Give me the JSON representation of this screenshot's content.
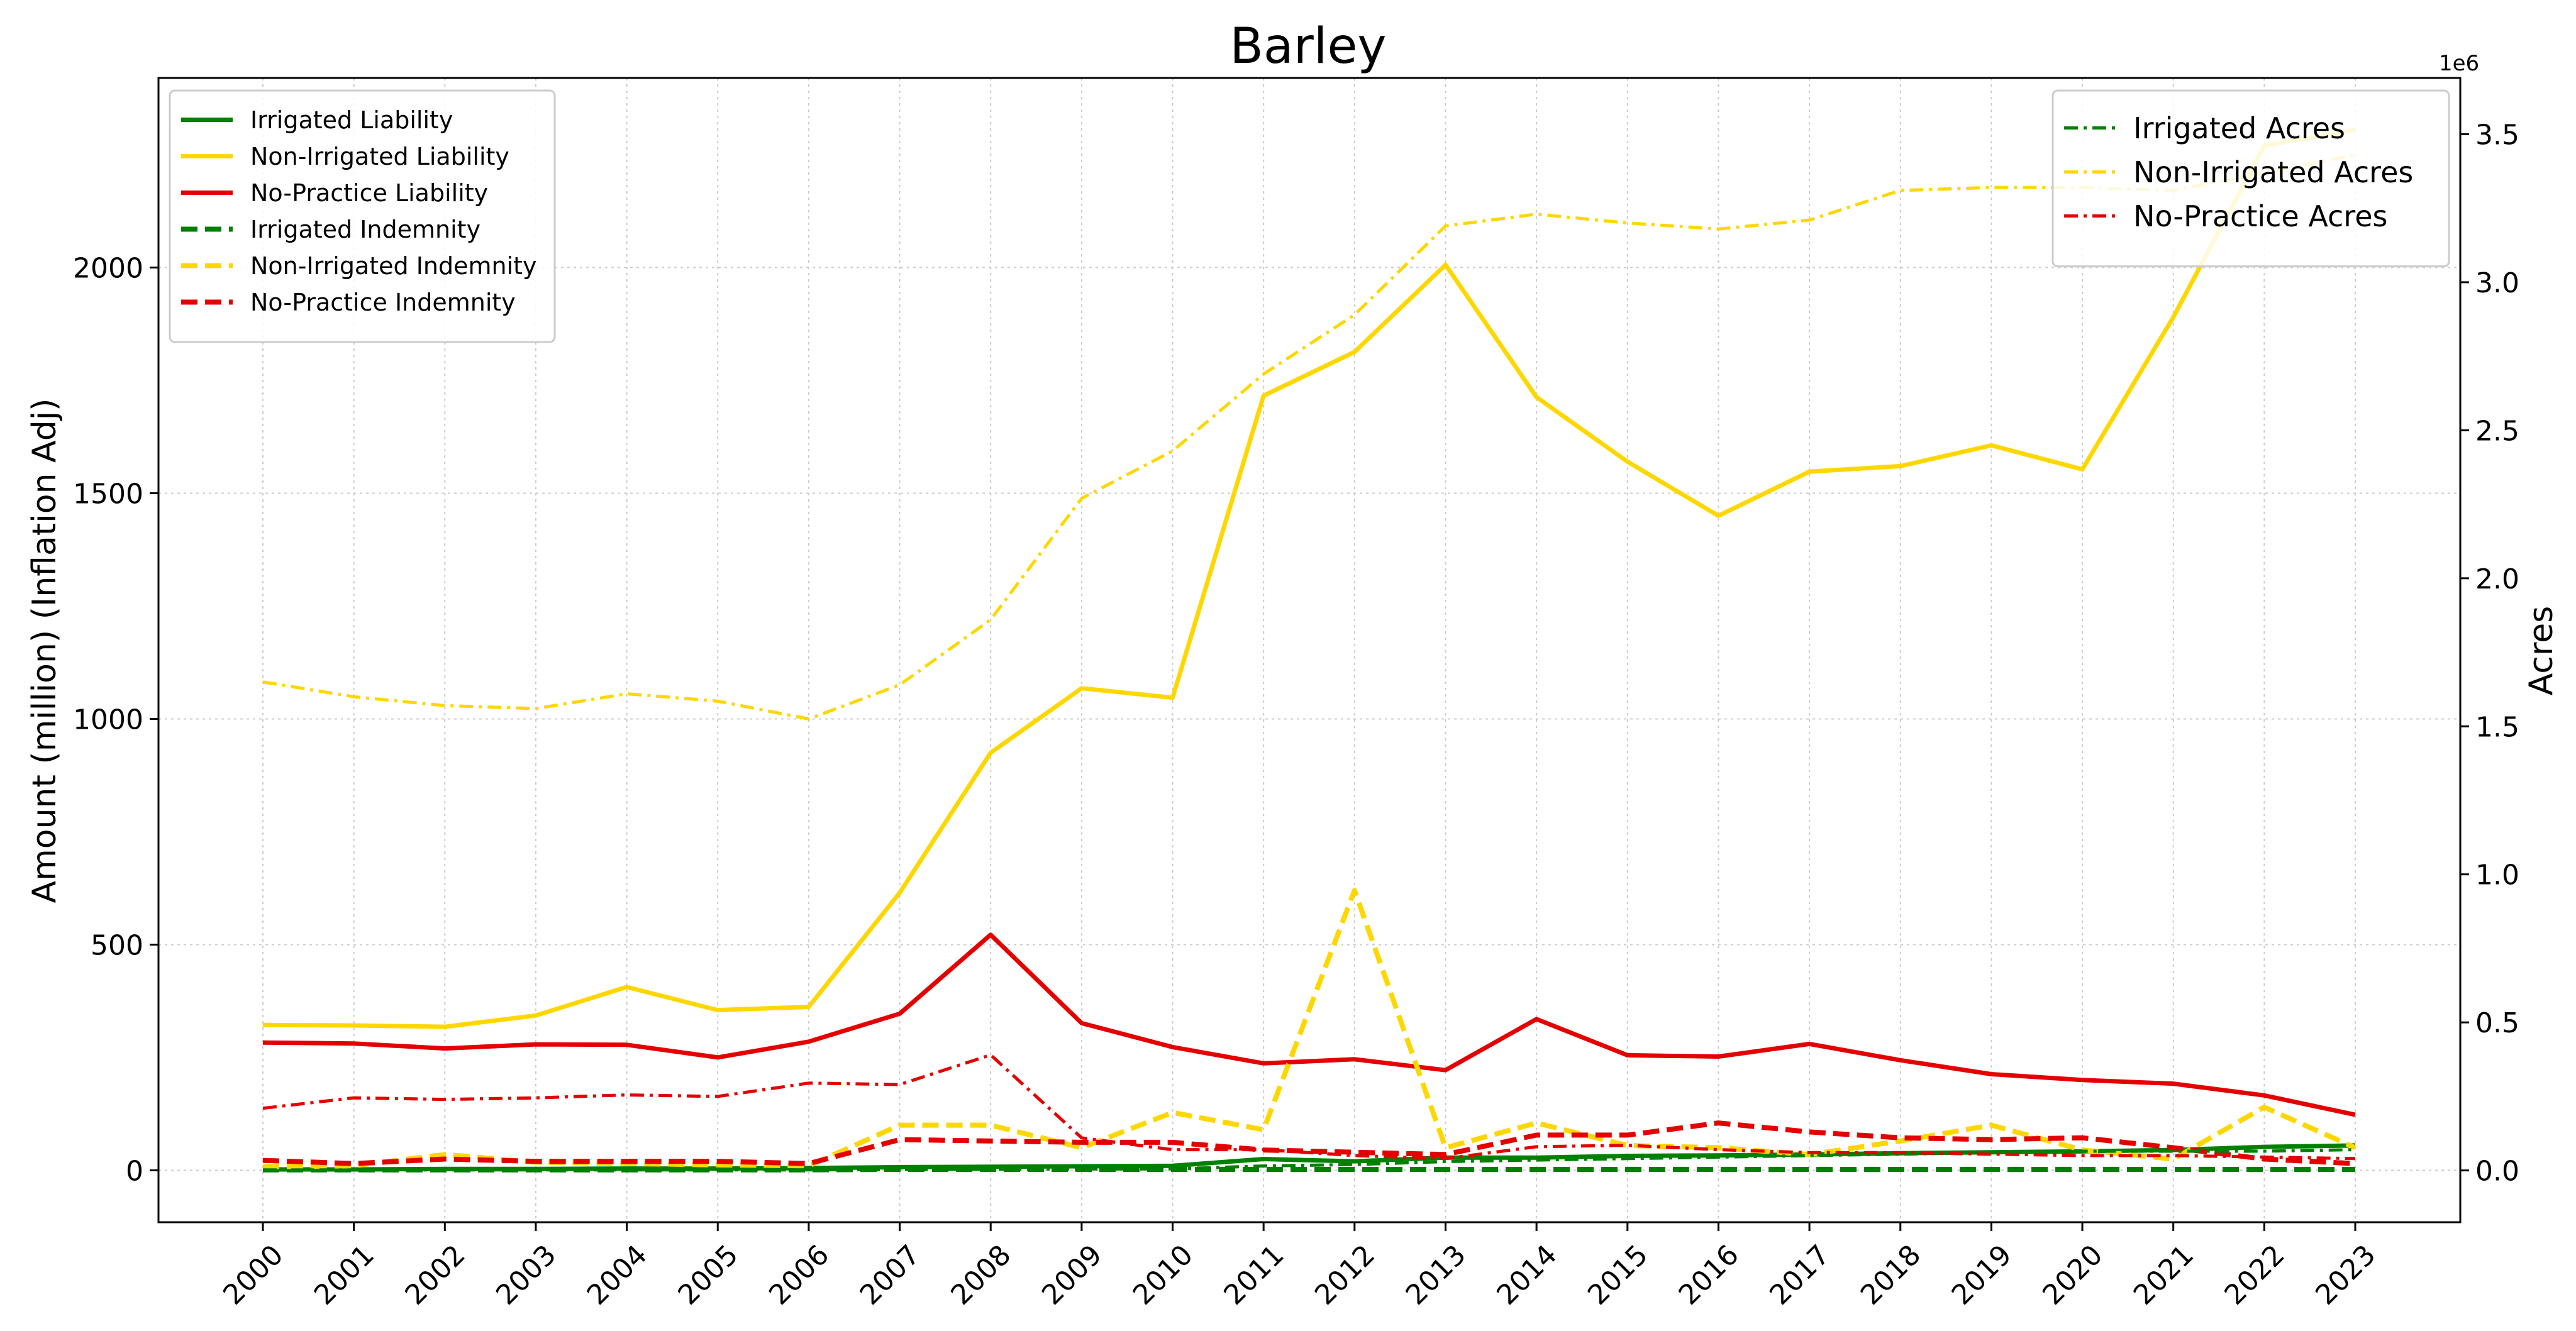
{
  "chart_data": {
    "type": "line",
    "title": "Barley",
    "x": [
      "2000",
      "2001",
      "2002",
      "2003",
      "2004",
      "2005",
      "2006",
      "2007",
      "2008",
      "2009",
      "2010",
      "2011",
      "2012",
      "2013",
      "2014",
      "2015",
      "2016",
      "2017",
      "2018",
      "2019",
      "2020",
      "2021",
      "2022",
      "2023"
    ],
    "left_axis": {
      "label": "Amount (million) (Inflation Adj)",
      "ylim": [
        -115,
        2420
      ],
      "ticks": [
        0,
        500,
        1000,
        1500,
        2000
      ]
    },
    "right_axis": {
      "label": "Acres",
      "offset_text": "1e6",
      "ylim": [
        -0.175,
        3.69
      ],
      "ticks": [
        0.0,
        0.5,
        1.0,
        1.5,
        2.0,
        2.5,
        3.0,
        3.5
      ],
      "tick_labels": [
        "0.0",
        "0.5",
        "1.0",
        "1.5",
        "2.0",
        "2.5",
        "3.0",
        "3.5"
      ]
    },
    "grid": true,
    "legend_left_placement": "top-left",
    "legend_right_placement": "top-right",
    "series": [
      {
        "name": "Irrigated Liability",
        "axis": "left",
        "style": "solid",
        "color": "#008000",
        "values": [
          2,
          2,
          3,
          3,
          4,
          4,
          5,
          7,
          8,
          9,
          10,
          25,
          20,
          28,
          28,
          32,
          33,
          35,
          38,
          40,
          42,
          45,
          52,
          55
        ]
      },
      {
        "name": "Non-Irrigated Liability",
        "axis": "left",
        "style": "solid",
        "color": "#FFD700",
        "values": [
          322,
          321,
          318,
          343,
          406,
          355,
          362,
          615,
          925,
          1068,
          1047,
          1716,
          1813,
          2006,
          1713,
          1570,
          1450,
          1548,
          1560,
          1606,
          1553,
          1890,
          2270,
          2305
        ]
      },
      {
        "name": "No-Practice Liability",
        "axis": "left",
        "style": "solid",
        "color": "#E50000",
        "values": [
          283,
          281,
          270,
          279,
          278,
          250,
          285,
          347,
          522,
          326,
          273,
          237,
          246,
          222,
          335,
          255,
          252,
          280,
          244,
          213,
          200,
          192,
          166,
          123
        ]
      },
      {
        "name": "Irrigated Indemnity",
        "axis": "left",
        "style": "dashed",
        "color": "#008000",
        "values": [
          1,
          1,
          1,
          1,
          1,
          1,
          1,
          2,
          2,
          2,
          2,
          2,
          2,
          2,
          2,
          2,
          2,
          2,
          2,
          2,
          2,
          2,
          2,
          2
        ]
      },
      {
        "name": "Non-Irrigated Indemnity",
        "axis": "left",
        "style": "dashed",
        "color": "#FFD700",
        "values": [
          8,
          10,
          35,
          18,
          15,
          12,
          10,
          100,
          100,
          50,
          128,
          90,
          620,
          50,
          105,
          55,
          50,
          35,
          65,
          100,
          45,
          25,
          140,
          50
        ]
      },
      {
        "name": "No-Practice Indemnity",
        "axis": "left",
        "style": "dashed",
        "color": "#E50000",
        "values": [
          22,
          15,
          25,
          20,
          20,
          20,
          15,
          68,
          65,
          62,
          62,
          45,
          40,
          35,
          78,
          78,
          105,
          85,
          72,
          68,
          72,
          50,
          25,
          15
        ]
      },
      {
        "name": "Irrigated Acres",
        "axis": "right",
        "style": "dashdot",
        "color": "#008000",
        "values": [
          0.002,
          0.002,
          0.002,
          0.002,
          0.002,
          0.002,
          0.002,
          0.003,
          0.004,
          0.005,
          0.005,
          0.015,
          0.02,
          0.03,
          0.035,
          0.04,
          0.045,
          0.05,
          0.055,
          0.06,
          0.065,
          0.065,
          0.065,
          0.07
        ]
      },
      {
        "name": "Non-Irrigated Acres",
        "axis": "right",
        "style": "dashdot",
        "color": "#FFD700",
        "values": [
          1.65,
          1.6,
          1.57,
          1.56,
          1.61,
          1.585,
          1.525,
          1.64,
          1.86,
          2.27,
          2.43,
          2.69,
          2.89,
          3.19,
          3.23,
          3.2,
          3.18,
          3.21,
          3.31,
          3.32,
          3.32,
          3.31,
          3.37,
          3.43
        ]
      },
      {
        "name": "No-Practice Acres",
        "axis": "right",
        "style": "dashdot",
        "color": "#E50000",
        "values": [
          0.21,
          0.245,
          0.24,
          0.245,
          0.255,
          0.25,
          0.295,
          0.29,
          0.39,
          0.11,
          0.07,
          0.07,
          0.05,
          0.04,
          0.08,
          0.085,
          0.07,
          0.06,
          0.06,
          0.055,
          0.05,
          0.05,
          0.045,
          0.04
        ]
      }
    ]
  }
}
